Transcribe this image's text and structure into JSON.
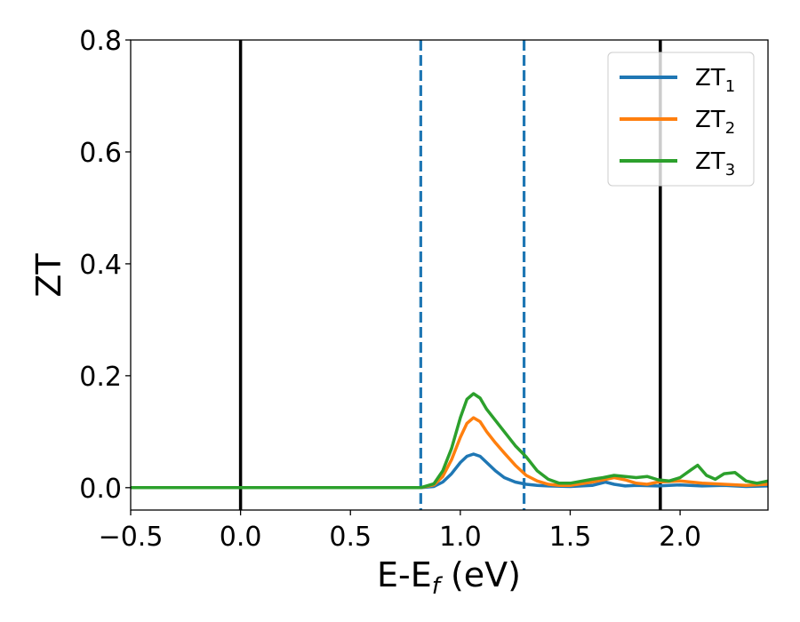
{
  "chart_data": {
    "type": "line",
    "xlabel": {
      "main": "E-E",
      "sub": "f",
      "rest": " (eV)"
    },
    "ylabel": "ZT",
    "xlim": [
      -0.5,
      2.4
    ],
    "ylim": [
      -0.04,
      0.8
    ],
    "xticks": [
      -0.5,
      0.0,
      0.5,
      1.0,
      1.5,
      2.0
    ],
    "xtick_labels": [
      "−0.5",
      "0.0",
      "0.5",
      "1.0",
      "1.5",
      "2.0"
    ],
    "yticks": [
      0.0,
      0.2,
      0.4,
      0.6,
      0.8
    ],
    "ytick_labels": [
      "0.0",
      "0.2",
      "0.4",
      "0.6",
      "0.8"
    ],
    "legend_position": "top-right",
    "vertical_lines": [
      {
        "x": 0.0,
        "style": "solid",
        "color": "#000000"
      },
      {
        "x": 1.91,
        "style": "solid",
        "color": "#000000"
      },
      {
        "x": 0.82,
        "style": "dashed",
        "color": "#1f77b4"
      },
      {
        "x": 1.29,
        "style": "dashed",
        "color": "#1f77b4"
      }
    ],
    "series": [
      {
        "name": "ZT",
        "name_sub": "1",
        "color": "#1f77b4",
        "x": [
          -0.5,
          0.82,
          0.88,
          0.92,
          0.96,
          1.0,
          1.03,
          1.06,
          1.09,
          1.12,
          1.16,
          1.2,
          1.25,
          1.3,
          1.35,
          1.4,
          1.5,
          1.6,
          1.66,
          1.7,
          1.75,
          1.8,
          1.9,
          2.0,
          2.1,
          2.2,
          2.3,
          2.4
        ],
        "y": [
          0.0,
          0.0,
          0.002,
          0.01,
          0.025,
          0.045,
          0.056,
          0.06,
          0.056,
          0.045,
          0.03,
          0.018,
          0.01,
          0.006,
          0.004,
          0.003,
          0.002,
          0.004,
          0.01,
          0.006,
          0.003,
          0.004,
          0.003,
          0.005,
          0.003,
          0.004,
          0.002,
          0.003
        ]
      },
      {
        "name": "ZT",
        "name_sub": "2",
        "color": "#ff7f0e",
        "x": [
          -0.5,
          0.82,
          0.88,
          0.92,
          0.96,
          1.0,
          1.03,
          1.06,
          1.09,
          1.12,
          1.16,
          1.2,
          1.25,
          1.3,
          1.35,
          1.4,
          1.45,
          1.5,
          1.6,
          1.7,
          1.75,
          1.8,
          1.85,
          1.9,
          2.0,
          2.1,
          2.2,
          2.3,
          2.4
        ],
        "y": [
          0.0,
          0.0,
          0.005,
          0.02,
          0.05,
          0.09,
          0.115,
          0.125,
          0.118,
          0.1,
          0.08,
          0.062,
          0.04,
          0.022,
          0.012,
          0.006,
          0.004,
          0.004,
          0.01,
          0.018,
          0.014,
          0.008,
          0.006,
          0.01,
          0.012,
          0.008,
          0.006,
          0.004,
          0.006
        ]
      },
      {
        "name": "ZT",
        "name_sub": "3",
        "color": "#2ca02c",
        "x": [
          -0.5,
          0.82,
          0.88,
          0.92,
          0.96,
          1.0,
          1.03,
          1.06,
          1.09,
          1.12,
          1.16,
          1.2,
          1.25,
          1.3,
          1.35,
          1.4,
          1.45,
          1.5,
          1.6,
          1.65,
          1.7,
          1.75,
          1.8,
          1.85,
          1.9,
          1.95,
          2.0,
          2.05,
          2.08,
          2.12,
          2.16,
          2.2,
          2.25,
          2.3,
          2.35,
          2.4
        ],
        "y": [
          0.0,
          0.0,
          0.007,
          0.03,
          0.07,
          0.125,
          0.158,
          0.168,
          0.16,
          0.14,
          0.12,
          0.1,
          0.075,
          0.055,
          0.03,
          0.015,
          0.008,
          0.008,
          0.015,
          0.018,
          0.022,
          0.02,
          0.018,
          0.02,
          0.014,
          0.012,
          0.018,
          0.032,
          0.04,
          0.022,
          0.015,
          0.025,
          0.027,
          0.012,
          0.008,
          0.012
        ]
      }
    ]
  }
}
